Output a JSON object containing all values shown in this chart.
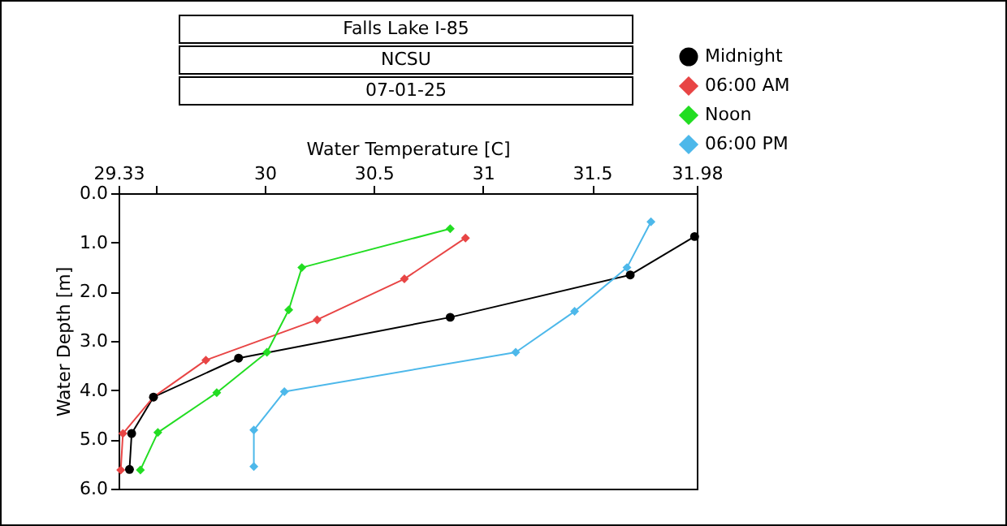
{
  "chart_data": {
    "type": "line",
    "title": "Falls Lake I-85",
    "subtitle": "NCSU",
    "annotations": [
      "07-01-25"
    ],
    "xlabel": "Water Temperature [C]",
    "ylabel": "Water Depth [m]",
    "xlim": [
      29.33,
      31.98
    ],
    "xticks": [
      29.33,
      {
        "value": 29.5,
        "label": null
      },
      30,
      30.5,
      31,
      31.5,
      31.98
    ],
    "ylim": [
      6.0,
      0.0
    ],
    "yticks": [
      {
        "value": 0,
        "label": "0.0"
      },
      {
        "value": 1,
        "label": "1.0"
      },
      {
        "value": 2,
        "label": "2.0"
      },
      {
        "value": 3,
        "label": "3.0"
      },
      {
        "value": 4,
        "label": "4.0"
      },
      {
        "value": 5,
        "label": "5.0"
      },
      {
        "value": 6,
        "label": "6.0"
      }
    ],
    "grid": false,
    "legend": "top right",
    "line_style": "solid",
    "series": [
      {
        "name": "Midnight",
        "color": "#000000",
        "marker": "circle",
        "x": [
          31.97,
          31.675,
          30.85,
          29.88,
          29.49,
          29.39,
          29.38
        ],
        "values": [
          0.88,
          1.66,
          2.52,
          3.35,
          4.14,
          4.88,
          5.61
        ]
      },
      {
        "name": "06:00 AM",
        "color": "#e84545",
        "marker": "diamond",
        "x": [
          30.92,
          30.64,
          30.24,
          29.73,
          29.49,
          29.35,
          29.34
        ],
        "values": [
          0.91,
          1.74,
          2.57,
          3.39,
          4.14,
          4.88,
          5.62
        ]
      },
      {
        "name": "Noon",
        "color": "#22dd22",
        "marker": "diamond",
        "x": [
          30.85,
          30.17,
          30.11,
          30.01,
          29.78,
          29.51,
          29.43
        ],
        "values": [
          0.72,
          1.51,
          2.37,
          3.23,
          4.05,
          4.86,
          5.62
        ]
      },
      {
        "name": "06:00 PM",
        "color": "#4db8ea",
        "marker": "diamond",
        "x": [
          31.77,
          31.66,
          31.42,
          31.15,
          30.09,
          29.95,
          29.95
        ],
        "values": [
          0.58,
          1.51,
          2.4,
          3.23,
          4.03,
          4.81,
          5.55
        ]
      }
    ]
  }
}
